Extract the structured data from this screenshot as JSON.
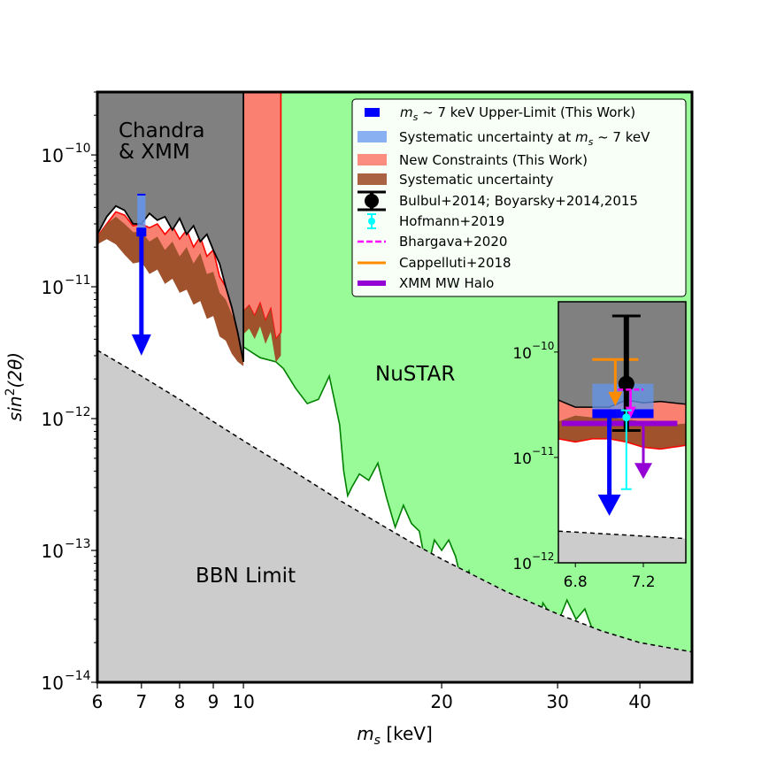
{
  "chart_data": {
    "type": "area",
    "xlabel": "m_s [keV]",
    "ylabel": "sin^2(2θ)",
    "xscale": "log",
    "yscale": "log",
    "xlim": [
      6,
      48
    ],
    "ylim": [
      1e-14,
      3e-10
    ],
    "grid": false,
    "legend_placement": "upper-right",
    "x_ticks": [
      {
        "value": 6,
        "label": "6"
      },
      {
        "value": 7,
        "label": "7"
      },
      {
        "value": 8,
        "label": "8"
      },
      {
        "value": 9,
        "label": "9"
      },
      {
        "value": 10,
        "label": "10"
      },
      {
        "value": 20,
        "label": "20"
      },
      {
        "value": 30,
        "label": "30"
      },
      {
        "value": 40,
        "label": "40"
      }
    ],
    "y_ticks": [
      {
        "value": 1e-14,
        "base": "10",
        "exp": "−14"
      },
      {
        "value": 1e-13,
        "base": "10",
        "exp": "−13"
      },
      {
        "value": 1e-12,
        "base": "10",
        "exp": "−12"
      },
      {
        "value": 1e-11,
        "base": "10",
        "exp": "−11"
      },
      {
        "value": 1e-10,
        "base": "10",
        "exp": "−10"
      }
    ],
    "annotations": {
      "chandra_line1": "Chandra",
      "chandra_line2": "& XMM",
      "nustar": "NuSTAR",
      "bbn": "BBN Limit"
    },
    "colors": {
      "chandra": "#808080",
      "nustar": "#98fb98",
      "nustar_edge": "#008000",
      "bbn": "#cccccc",
      "new_constraints": "#fa8072",
      "systematic": "#a0522d",
      "upper_limit": "#0000ff",
      "sys_7kev": "#6495ed",
      "bulbul": "#000000",
      "hofmann": "#00ffff",
      "bhargava": "#ff00ff",
      "cappelluti": "#ff8c00",
      "xmm_halo": "#9400d3"
    },
    "series": [
      {
        "name": "New Constraints (This Work)",
        "upper": {
          "x": [
            6.0,
            6.2,
            6.4,
            6.6,
            6.8,
            7.0,
            7.2,
            7.4,
            7.6,
            7.8,
            8.0,
            8.2,
            8.4,
            8.6,
            8.8,
            9.0,
            9.2,
            9.4,
            9.6,
            9.8,
            10.0
          ],
          "y": [
            2.4e-11,
            3e-11,
            3.7e-11,
            3.5e-11,
            2.9e-11,
            3e-11,
            2.8e-11,
            3e-11,
            2.5e-11,
            2.9e-11,
            2.3e-11,
            2.7e-11,
            2e-11,
            2.4e-11,
            1.7e-11,
            1.9e-11,
            1.2e-11,
            1e-11,
            8e-12,
            6e-12,
            4.5e-12
          ]
        },
        "lower": {
          "x": [
            6.0,
            6.2,
            6.4,
            6.6,
            6.8,
            7.0,
            7.2,
            7.4,
            7.6,
            7.8,
            8.0,
            8.2,
            8.4,
            8.6,
            8.8,
            9.0,
            9.2,
            9.4,
            9.6,
            9.8,
            10.0
          ],
          "y": [
            2.1e-11,
            2.5e-11,
            2.6e-11,
            2.4e-11,
            2e-11,
            2.1e-11,
            1.7e-11,
            1.9e-11,
            1.5e-11,
            1.7e-11,
            1.3e-11,
            1.4e-11,
            1.1e-11,
            1.2e-11,
            8.5e-12,
            9e-12,
            6e-12,
            5.5e-12,
            4.3e-12,
            3.5e-12,
            2.8e-12
          ]
        }
      },
      {
        "name": "Systematic uncertainty",
        "upper": {
          "x": [
            6.0,
            6.2,
            6.4,
            6.6,
            6.8,
            7.0,
            7.2,
            7.4,
            7.6,
            7.8,
            8.0,
            8.2,
            8.4,
            8.6,
            8.8,
            9.0,
            9.2,
            9.4,
            9.6,
            9.8,
            10.0
          ],
          "y": [
            2.4e-11,
            3e-11,
            3.4e-11,
            3e-11,
            2.6e-11,
            2.6e-11,
            2.2e-11,
            2.4e-11,
            1.9e-11,
            2.2e-11,
            1.7e-11,
            2e-11,
            1.5e-11,
            1.8e-11,
            1.25e-11,
            1.3e-11,
            9e-12,
            8e-12,
            6.2e-12,
            5e-12,
            3.6e-12
          ]
        },
        "lower": {
          "x": [
            6.0,
            6.2,
            6.4,
            6.6,
            6.8,
            7.0,
            7.2,
            7.4,
            7.6,
            7.8,
            8.0,
            8.2,
            8.4,
            8.6,
            8.8,
            9.0,
            9.2,
            9.4,
            9.6,
            9.8,
            10.0
          ],
          "y": [
            2.1e-11,
            2.3e-11,
            2.1e-11,
            1.75e-11,
            1.5e-11,
            1.55e-11,
            1.25e-11,
            1.35e-11,
            1.05e-11,
            1.15e-11,
            9e-12,
            9.5e-12,
            7.3e-12,
            7.8e-12,
            5.7e-12,
            6e-12,
            4.2e-12,
            3.9e-12,
            3.1e-12,
            2.7e-12,
            2.5e-12
          ]
        }
      },
      {
        "name": "New Constraints (This Work) 10–11.4 keV",
        "upper": {
          "x": [
            10.0,
            11.4
          ],
          "y": [
            3e-10,
            3e-10
          ]
        },
        "lower": {
          "x": [
            10.0,
            10.2,
            10.4,
            10.6,
            10.8,
            11.0,
            11.2,
            11.4
          ],
          "y": [
            6.5e-12,
            7.2e-12,
            6e-12,
            7.5e-12,
            5.5e-12,
            6.8e-12,
            4e-12,
            4.5e-12
          ]
        }
      },
      {
        "name": "Chandra & XMM",
        "x": [
          6.0,
          6.2,
          6.4,
          6.6,
          6.8,
          7.0,
          7.2,
          7.4,
          7.6,
          7.8,
          8.0,
          8.2,
          8.4,
          8.6,
          8.8,
          9.0,
          9.2,
          9.4,
          9.6,
          9.8,
          10.0
        ],
        "y": [
          2.5e-11,
          3.4e-11,
          4.1e-11,
          3.8e-11,
          3e-11,
          3e-11,
          3.6e-11,
          3.2e-11,
          3.4e-11,
          2.7e-11,
          3.3e-11,
          2.5e-11,
          2.9e-11,
          2.2e-11,
          2.5e-11,
          1.9e-11,
          1.5e-11,
          1e-11,
          7e-12,
          4.5e-12,
          2.7e-12
        ]
      },
      {
        "name": "NuSTAR",
        "x": [
          10.0,
          10.6,
          11.2,
          11.5,
          12.0,
          12.5,
          13.0,
          13.5,
          14.0,
          14.2,
          14.4,
          14.6,
          15.0,
          15.5,
          16.0,
          16.5,
          17.0,
          17.5,
          18.0,
          18.5,
          19.0,
          19.5,
          20.0,
          20.5,
          21.0,
          21.5,
          22.0,
          22.5,
          23.0,
          23.5,
          24.0,
          24.5,
          25.0,
          25.5,
          26.0,
          26.5,
          27.0,
          27.5,
          28.0,
          28.5,
          29.0,
          29.5,
          30.0,
          31.0,
          32.0,
          33.0,
          34.0,
          35.0,
          36.0,
          36.5,
          37.0,
          37.5,
          38.0,
          39.0,
          40.0,
          41.0,
          42.0,
          43.0,
          44.0,
          45.0,
          46.0,
          47.0,
          48.0
        ],
        "y": [
          3.5e-12,
          2.9e-12,
          2.7e-12,
          2.4e-12,
          1.7e-12,
          1.3e-12,
          1.4e-12,
          2.1e-12,
          9e-13,
          4e-13,
          2.6e-13,
          3e-13,
          3.8e-13,
          3.4e-13,
          4.6e-13,
          2.5e-13,
          1.5e-13,
          2.2e-13,
          1.6e-13,
          1.4e-13,
          7e-14,
          1.2e-13,
          1e-13,
          1.2e-13,
          9e-14,
          5.5e-14,
          7e-14,
          4.5e-14,
          3.8e-14,
          5e-14,
          4.5e-14,
          2.6e-14,
          2.5e-14,
          3.5e-14,
          3e-14,
          2.7e-14,
          4e-14,
          3e-14,
          2.2e-14,
          4e-14,
          3.5e-14,
          3.2e-14,
          2.8e-14,
          4.2e-14,
          3e-14,
          3.6e-14,
          2.4e-14,
          1.8e-14,
          1.4e-14,
          1.2e-14,
          1.6e-14,
          1.2e-14,
          1e-14,
          1.5e-14,
          1.1e-14,
          1.3e-14,
          1.5e-14,
          1e-14,
          1e-14,
          1e-14,
          1e-14,
          1e-14,
          1e-14
        ]
      },
      {
        "name": "BBN Limit",
        "x": [
          6.0,
          7.0,
          8.0,
          9.0,
          10.0,
          12.0,
          14.0,
          16.0,
          18.0,
          20.0,
          25.0,
          30.0,
          35.0,
          40.0,
          48.0
        ],
        "y": [
          3.3e-12,
          2.1e-12,
          1.4e-12,
          9.5e-13,
          6.8e-13,
          3.9e-13,
          2.4e-13,
          1.62e-13,
          1.15e-13,
          8.6e-14,
          4.9e-14,
          3.3e-14,
          2.45e-14,
          2e-14,
          1.7e-14
        ]
      },
      {
        "name": "m_s ~ 7 keV Upper-Limit (This Work)",
        "x": [
          7.0
        ],
        "y": [
          2.6e-11
        ],
        "arrow_to": 3.1e-12
      },
      {
        "name": "Systematic uncertainty at m_s ~ 7 keV",
        "x": [
          6.9,
          7.1
        ],
        "y": [
          2.6e-11,
          5e-11
        ]
      }
    ],
    "inset": {
      "xlim": [
        6.7,
        7.45
      ],
      "ylim": [
        1e-12,
        3e-10
      ],
      "x_ticks": [
        {
          "value": 6.8,
          "label": "6.8"
        },
        {
          "value": 7.2,
          "label": "7.2"
        }
      ],
      "y_ticks": [
        {
          "value": 1e-12,
          "base": "10",
          "exp": "−12"
        },
        {
          "value": 1e-11,
          "base": "10",
          "exp": "−11"
        },
        {
          "value": 1e-10,
          "base": "10",
          "exp": "−10"
        }
      ],
      "points": [
        {
          "name": "Bulbul+2014; Boyarsky+2014,2015",
          "x": 7.1,
          "y": 5e-11,
          "low": 1.8e-11,
          "high": 2.2e-10
        },
        {
          "name": "Hofmann+2019",
          "x": 7.1,
          "y": 2.4e-11,
          "low": 5e-12,
          "high": 2.8e-11
        },
        {
          "name": "Bhargava+2020",
          "x_range": [
            7.05,
            7.2
          ],
          "y": 4.4e-11,
          "arrow_to": 2.4e-11
        },
        {
          "name": "Cappelluti+2018",
          "x_range": [
            6.9,
            7.17
          ],
          "y": 8.5e-11,
          "arrow_to": 3.2e-11
        },
        {
          "name": "XMM MW Halo",
          "x_range": [
            6.72,
            7.4
          ],
          "y": 2.1e-11,
          "arrow_x": 7.2,
          "arrow_to": 6.5e-12
        },
        {
          "name": "m_s ~ 7 keV Upper-Limit (This Work)",
          "x_range": [
            6.9,
            7.26
          ],
          "y": 2.6e-11,
          "arrow_x": 7.0,
          "arrow_to": 2.9e-12
        },
        {
          "name": "Systematic uncertainty at m_s ~ 7 keV",
          "x_range": [
            6.9,
            7.26
          ],
          "y_range": [
            2.6e-11,
            5e-11
          ]
        }
      ]
    },
    "legend": [
      {
        "key": "upper_limit",
        "text": "~ 7 keV Upper-Limit (This Work)",
        "sym": "m",
        "sub": "s",
        "kind": "patch",
        "color": "#0000ff"
      },
      {
        "key": "sys7",
        "text": "Systematic uncertainty at ",
        "tail": " ~ 7 keV",
        "sym": "m",
        "sub": "s",
        "kind": "patch-wide",
        "color": "#6495ed"
      },
      {
        "key": "new",
        "text": "New Constraints (This Work)",
        "kind": "patch-wide",
        "color": "#fa8072"
      },
      {
        "key": "sys",
        "text": "Systematic uncertainty",
        "kind": "patch-wide",
        "color": "#a0522d"
      },
      {
        "key": "bulbul",
        "text": "Bulbul+2014; Boyarsky+2014,2015",
        "kind": "errorbar-big",
        "color": "#000000"
      },
      {
        "key": "hofmann",
        "text": "Hofmann+2019",
        "kind": "errorbar-small",
        "color": "#00ffff"
      },
      {
        "key": "bhargava",
        "text": "Bhargava+2020",
        "kind": "line-dashed",
        "color": "#ff00ff"
      },
      {
        "key": "cappelluti",
        "text": "Cappelluti+2018",
        "kind": "line",
        "color": "#ff8c00"
      },
      {
        "key": "xmm",
        "text": "XMM MW Halo",
        "kind": "line-thick",
        "color": "#9400d3"
      }
    ]
  }
}
